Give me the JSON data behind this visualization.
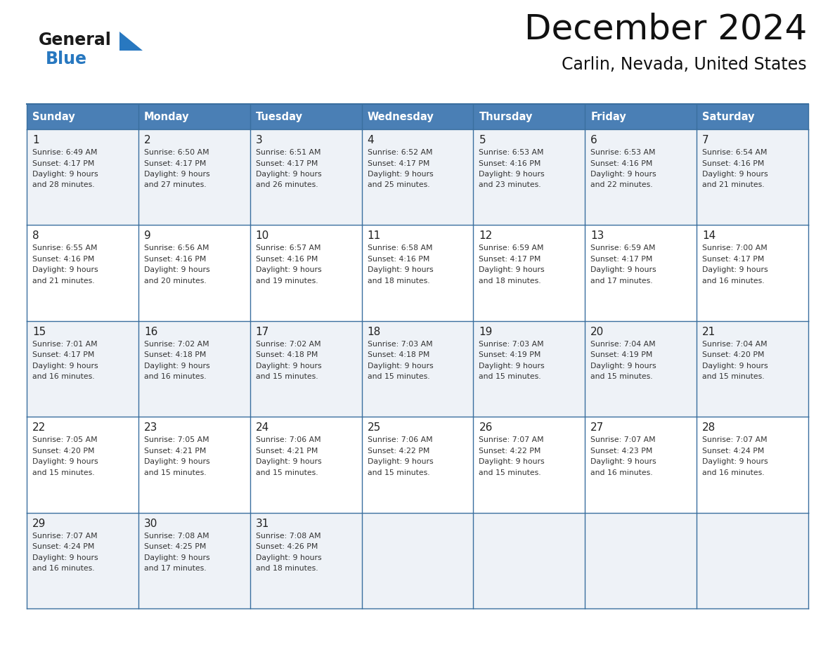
{
  "title": "December 2024",
  "subtitle": "Carlin, Nevada, United States",
  "header_color": "#4a7fb5",
  "header_text_color": "#ffffff",
  "cell_bg_odd": "#eef2f7",
  "cell_bg_even": "#ffffff",
  "border_color": "#3a6f9f",
  "text_color": "#222222",
  "days_of_week": [
    "Sunday",
    "Monday",
    "Tuesday",
    "Wednesday",
    "Thursday",
    "Friday",
    "Saturday"
  ],
  "logo_color1": "#1a1a1a",
  "logo_color2": "#2878c0",
  "calendar": [
    [
      {
        "day": "1",
        "sunrise": "6:49 AM",
        "sunset": "4:17 PM",
        "daylight_min": "28"
      },
      {
        "day": "2",
        "sunrise": "6:50 AM",
        "sunset": "4:17 PM",
        "daylight_min": "27"
      },
      {
        "day": "3",
        "sunrise": "6:51 AM",
        "sunset": "4:17 PM",
        "daylight_min": "26"
      },
      {
        "day": "4",
        "sunrise": "6:52 AM",
        "sunset": "4:17 PM",
        "daylight_min": "25"
      },
      {
        "day": "5",
        "sunrise": "6:53 AM",
        "sunset": "4:16 PM",
        "daylight_min": "23"
      },
      {
        "day": "6",
        "sunrise": "6:53 AM",
        "sunset": "4:16 PM",
        "daylight_min": "22"
      },
      {
        "day": "7",
        "sunrise": "6:54 AM",
        "sunset": "4:16 PM",
        "daylight_min": "21"
      }
    ],
    [
      {
        "day": "8",
        "sunrise": "6:55 AM",
        "sunset": "4:16 PM",
        "daylight_min": "21"
      },
      {
        "day": "9",
        "sunrise": "6:56 AM",
        "sunset": "4:16 PM",
        "daylight_min": "20"
      },
      {
        "day": "10",
        "sunrise": "6:57 AM",
        "sunset": "4:16 PM",
        "daylight_min": "19"
      },
      {
        "day": "11",
        "sunrise": "6:58 AM",
        "sunset": "4:16 PM",
        "daylight_min": "18"
      },
      {
        "day": "12",
        "sunrise": "6:59 AM",
        "sunset": "4:17 PM",
        "daylight_min": "18"
      },
      {
        "day": "13",
        "sunrise": "6:59 AM",
        "sunset": "4:17 PM",
        "daylight_min": "17"
      },
      {
        "day": "14",
        "sunrise": "7:00 AM",
        "sunset": "4:17 PM",
        "daylight_min": "16"
      }
    ],
    [
      {
        "day": "15",
        "sunrise": "7:01 AM",
        "sunset": "4:17 PM",
        "daylight_min": "16"
      },
      {
        "day": "16",
        "sunrise": "7:02 AM",
        "sunset": "4:18 PM",
        "daylight_min": "16"
      },
      {
        "day": "17",
        "sunrise": "7:02 AM",
        "sunset": "4:18 PM",
        "daylight_min": "15"
      },
      {
        "day": "18",
        "sunrise": "7:03 AM",
        "sunset": "4:18 PM",
        "daylight_min": "15"
      },
      {
        "day": "19",
        "sunrise": "7:03 AM",
        "sunset": "4:19 PM",
        "daylight_min": "15"
      },
      {
        "day": "20",
        "sunrise": "7:04 AM",
        "sunset": "4:19 PM",
        "daylight_min": "15"
      },
      {
        "day": "21",
        "sunrise": "7:04 AM",
        "sunset": "4:20 PM",
        "daylight_min": "15"
      }
    ],
    [
      {
        "day": "22",
        "sunrise": "7:05 AM",
        "sunset": "4:20 PM",
        "daylight_min": "15"
      },
      {
        "day": "23",
        "sunrise": "7:05 AM",
        "sunset": "4:21 PM",
        "daylight_min": "15"
      },
      {
        "day": "24",
        "sunrise": "7:06 AM",
        "sunset": "4:21 PM",
        "daylight_min": "15"
      },
      {
        "day": "25",
        "sunrise": "7:06 AM",
        "sunset": "4:22 PM",
        "daylight_min": "15"
      },
      {
        "day": "26",
        "sunrise": "7:07 AM",
        "sunset": "4:22 PM",
        "daylight_min": "15"
      },
      {
        "day": "27",
        "sunrise": "7:07 AM",
        "sunset": "4:23 PM",
        "daylight_min": "16"
      },
      {
        "day": "28",
        "sunrise": "7:07 AM",
        "sunset": "4:24 PM",
        "daylight_min": "16"
      }
    ],
    [
      {
        "day": "29",
        "sunrise": "7:07 AM",
        "sunset": "4:24 PM",
        "daylight_min": "16"
      },
      {
        "day": "30",
        "sunrise": "7:08 AM",
        "sunset": "4:25 PM",
        "daylight_min": "17"
      },
      {
        "day": "31",
        "sunrise": "7:08 AM",
        "sunset": "4:26 PM",
        "daylight_min": "18"
      },
      null,
      null,
      null,
      null
    ]
  ]
}
